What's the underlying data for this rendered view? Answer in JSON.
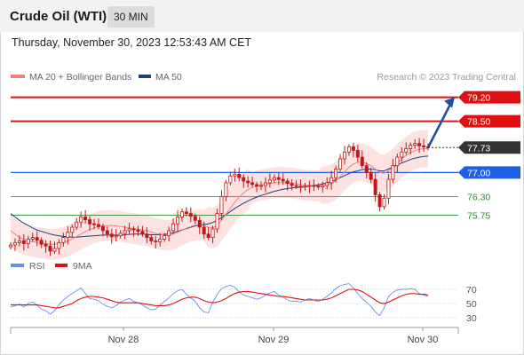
{
  "header": {
    "title": "Crude Oil (WTI)",
    "timeframe": "30 MIN",
    "datetime": "Thursday, November 30, 2023 12:53:43 AM CET"
  },
  "legend": {
    "ma20_label": "MA 20 + Bollinger Bands",
    "ma50_label": "MA 50",
    "copyright": "Research © 2023 Trading Central",
    "rsi_label": "RSI",
    "rsi_ma_label": "9MA"
  },
  "colors": {
    "resistance": "#dd1111",
    "pivot": "#1f5fe8",
    "support": "#2e8b2e",
    "candle": "#c01818",
    "ma20": "#f08080",
    "bollinger_fill": "#fde2e2",
    "ma50": "#1f3f7a",
    "rsi": "#6b8ee8",
    "rsi_ma": "#dd1111",
    "current_price": "#333333",
    "arrow": "#1f4fa0"
  },
  "chart_data": [
    {
      "type": "candlestick",
      "x_ticks": [
        "Nov 28",
        "Nov 29",
        "Nov 30"
      ],
      "ylim": [
        74.7,
        79.45
      ],
      "levels": [
        {
          "value": 79.2,
          "label": "79.20",
          "role": "resistance"
        },
        {
          "value": 78.5,
          "label": "78.50",
          "role": "resistance"
        },
        {
          "value": 77.73,
          "label": "77.73",
          "role": "current"
        },
        {
          "value": 77.0,
          "label": "77.00",
          "role": "pivot"
        },
        {
          "value": 76.3,
          "label": "76.30",
          "role": "support"
        },
        {
          "value": 75.75,
          "label": "75.75",
          "role": "support"
        }
      ],
      "arrow": {
        "from": 77.73,
        "to": 79.2
      },
      "close_series": [
        74.88,
        74.95,
        75.0,
        74.92,
        75.05,
        75.1,
        75.02,
        74.9,
        74.85,
        74.7,
        74.78,
        74.95,
        75.1,
        75.25,
        75.4,
        75.55,
        75.7,
        75.62,
        75.5,
        75.48,
        75.42,
        75.3,
        75.2,
        75.12,
        75.15,
        75.22,
        75.3,
        75.35,
        75.32,
        75.28,
        75.2,
        75.1,
        75.0,
        74.98,
        75.05,
        75.15,
        75.3,
        75.5,
        75.7,
        75.85,
        75.8,
        75.72,
        75.6,
        75.4,
        75.2,
        75.1,
        75.35,
        75.8,
        76.3,
        76.7,
        76.9,
        76.95,
        76.85,
        76.75,
        76.7,
        76.65,
        76.6,
        76.62,
        76.7,
        76.78,
        76.85,
        76.8,
        76.75,
        76.68,
        76.62,
        76.6,
        76.58,
        76.6,
        76.62,
        76.6,
        76.58,
        76.62,
        76.7,
        76.85,
        77.1,
        77.4,
        77.6,
        77.75,
        77.65,
        77.45,
        77.2,
        77.0,
        76.8,
        76.35,
        76.0,
        76.25,
        76.8,
        77.2,
        77.45,
        77.6,
        77.7,
        77.8,
        77.85,
        77.78,
        77.75,
        77.73
      ],
      "ma50_series": [
        75.8,
        75.7,
        75.6,
        75.52,
        75.45,
        75.38,
        75.32,
        75.28,
        75.24,
        75.2,
        75.17,
        75.15,
        75.13,
        75.12,
        75.11,
        75.11,
        75.12,
        75.13,
        75.14,
        75.15,
        75.16,
        75.17,
        75.17,
        75.17,
        75.17,
        75.17,
        75.18,
        75.19,
        75.2,
        75.2,
        75.2,
        75.19,
        75.18,
        75.18,
        75.18,
        75.19,
        75.21,
        75.24,
        75.28,
        75.32,
        75.36,
        75.4,
        75.44,
        75.46,
        75.48,
        75.5,
        75.54,
        75.6,
        75.68,
        75.77,
        75.86,
        75.95,
        76.03,
        76.1,
        76.17,
        76.23,
        76.28,
        76.33,
        76.37,
        76.41,
        76.45,
        76.48,
        76.51,
        76.53,
        76.55,
        76.56,
        76.57,
        76.58,
        76.6,
        76.62,
        76.64,
        76.67,
        76.7,
        76.74,
        76.79,
        76.85,
        76.91,
        76.97,
        77.02,
        77.05,
        77.08,
        77.1,
        77.1,
        77.08,
        77.05,
        77.05,
        77.1,
        77.16,
        77.22,
        77.28,
        77.33,
        77.38,
        77.42,
        77.45,
        77.47,
        77.48
      ],
      "ma20_series": [
        75.3,
        75.2,
        75.1,
        75.05,
        75.0,
        74.98,
        74.96,
        74.94,
        74.92,
        74.9,
        74.9,
        74.92,
        74.95,
        75.0,
        75.06,
        75.13,
        75.2,
        75.27,
        75.33,
        75.38,
        75.42,
        75.44,
        75.45,
        75.45,
        75.44,
        75.42,
        75.4,
        75.38,
        75.36,
        75.34,
        75.32,
        75.3,
        75.26,
        75.22,
        75.19,
        75.17,
        75.17,
        75.2,
        75.25,
        75.31,
        75.37,
        75.42,
        75.46,
        75.47,
        75.45,
        75.4,
        75.38,
        75.45,
        75.6,
        75.78,
        75.96,
        76.13,
        76.28,
        76.4,
        76.5,
        76.56,
        76.6,
        76.63,
        76.66,
        76.68,
        76.7,
        76.71,
        76.71,
        76.7,
        76.69,
        76.67,
        76.65,
        76.63,
        76.62,
        76.61,
        76.61,
        76.62,
        76.64,
        76.68,
        76.76,
        76.88,
        77.02,
        77.15,
        77.25,
        77.3,
        77.3,
        77.26,
        77.2,
        77.1,
        77.0,
        76.98,
        77.05,
        77.15,
        77.28,
        77.4,
        77.5,
        77.58,
        77.64,
        77.68,
        77.7,
        77.7
      ],
      "rsi_levels": [
        70,
        50,
        30
      ],
      "rsi_series": [
        45,
        47,
        49,
        45,
        50,
        52,
        48,
        42,
        40,
        35,
        40,
        48,
        55,
        60,
        64,
        68,
        72,
        64,
        57,
        56,
        54,
        49,
        46,
        44,
        47,
        52,
        55,
        57,
        53,
        51,
        48,
        44,
        41,
        42,
        48,
        53,
        58,
        64,
        68,
        70,
        63,
        58,
        53,
        44,
        38,
        37,
        52,
        63,
        71,
        74,
        76,
        73,
        66,
        62,
        60,
        58,
        56,
        58,
        62,
        65,
        67,
        62,
        59,
        55,
        53,
        53,
        52,
        55,
        57,
        55,
        53,
        56,
        60,
        65,
        71,
        75,
        77,
        78,
        72,
        64,
        57,
        52,
        46,
        38,
        33,
        44,
        60,
        66,
        69,
        70,
        70,
        71,
        70,
        64,
        62,
        60
      ],
      "rsi_ma_series": [
        48,
        48,
        48,
        48,
        48,
        48,
        48,
        47,
        46,
        45,
        44,
        44,
        46,
        48,
        50,
        54,
        57,
        59,
        60,
        60,
        59,
        58,
        56,
        54,
        52,
        51,
        51,
        51,
        51,
        51,
        50,
        49,
        48,
        47,
        47,
        47,
        48,
        50,
        53,
        56,
        58,
        59,
        59,
        57,
        54,
        52,
        51,
        52,
        54,
        57,
        61,
        64,
        66,
        67,
        67,
        66,
        65,
        64,
        63,
        62,
        61,
        60,
        60,
        59,
        58,
        57,
        56,
        55,
        55,
        55,
        55,
        55,
        56,
        58,
        61,
        64,
        67,
        70,
        70,
        69,
        67,
        63,
        59,
        55,
        51,
        50,
        52,
        55,
        58,
        61,
        63,
        64,
        64,
        63,
        63,
        62
      ]
    }
  ]
}
